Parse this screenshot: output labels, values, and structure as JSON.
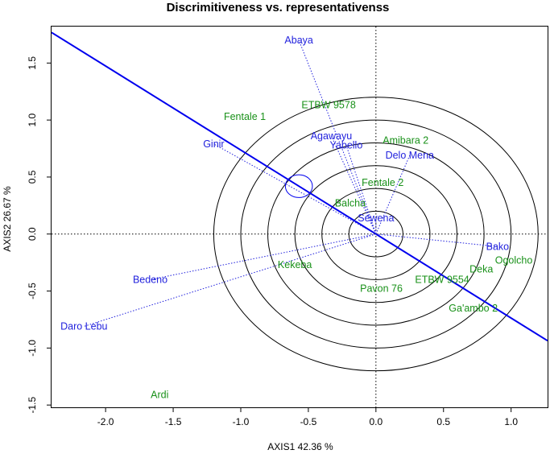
{
  "chart_data": {
    "type": "scatter",
    "title": "Discrimitiveness vs. representativenss",
    "xlabel": "AXIS1 42.36 %",
    "ylabel": "AXIS2 26.67 %",
    "xlim": [
      -2.4,
      1.27
    ],
    "ylim": [
      -1.52,
      1.82
    ],
    "xticks": [
      -2.0,
      -1.5,
      -1.0,
      -0.5,
      0.0,
      0.5,
      1.0
    ],
    "xtick_labels": [
      "-2.0",
      "-1.5",
      "-1.0",
      "-0.5",
      "0.0",
      "0.5",
      "1.0"
    ],
    "yticks": [
      -1.5,
      -1.0,
      -0.5,
      0.0,
      0.5,
      1.0,
      1.5
    ],
    "ytick_labels": [
      "-1.5",
      "-1.0",
      "-0.5",
      "0.0",
      "0.5",
      "1.0",
      "1.5"
    ],
    "environments": [
      {
        "name": "Abaya",
        "x": -0.57,
        "y": 1.7
      },
      {
        "name": "Agawayu",
        "x": -0.33,
        "y": 0.86
      },
      {
        "name": "Yabello",
        "x": -0.22,
        "y": 0.78
      },
      {
        "name": "Delo Mena",
        "x": 0.25,
        "y": 0.69
      },
      {
        "name": "Sewena",
        "x": 0.0,
        "y": 0.14
      },
      {
        "name": "Bako",
        "x": 0.9,
        "y": -0.11
      },
      {
        "name": "Bedeno",
        "x": -1.67,
        "y": -0.4
      },
      {
        "name": "Daro Lebu",
        "x": -2.16,
        "y": -0.81
      },
      {
        "name": "Ginir",
        "x": -1.2,
        "y": 0.79
      }
    ],
    "genotypes": [
      {
        "name": "ETBW 9578",
        "x": -0.35,
        "y": 1.13
      },
      {
        "name": "Fentale 1",
        "x": -0.97,
        "y": 1.03
      },
      {
        "name": "Amibara 2",
        "x": 0.22,
        "y": 0.82
      },
      {
        "name": "Fentale 2",
        "x": 0.05,
        "y": 0.45
      },
      {
        "name": "Balcha",
        "x": -0.19,
        "y": 0.27
      },
      {
        "name": "Kekeba",
        "x": -0.6,
        "y": -0.27
      },
      {
        "name": "Pavon 76",
        "x": 0.04,
        "y": -0.48
      },
      {
        "name": "ETBW 9554",
        "x": 0.49,
        "y": -0.4
      },
      {
        "name": "Deka",
        "x": 0.78,
        "y": -0.31
      },
      {
        "name": "Ogolcho",
        "x": 1.02,
        "y": -0.23
      },
      {
        "name": "Ga'ambo 2",
        "x": 0.72,
        "y": -0.65
      },
      {
        "name": "Ardi",
        "x": -1.6,
        "y": -1.41
      }
    ],
    "aec": {
      "origin": [
        0,
        0
      ],
      "average_env": [
        -0.57,
        0.42
      ],
      "circle_radii": [
        0.2,
        0.4,
        0.6,
        0.8,
        1.0,
        1.2
      ]
    },
    "colors": {
      "environment": "#2222dd",
      "genotype": "#199119",
      "axis_line": "#0000ee",
      "circles": "#000000"
    }
  }
}
